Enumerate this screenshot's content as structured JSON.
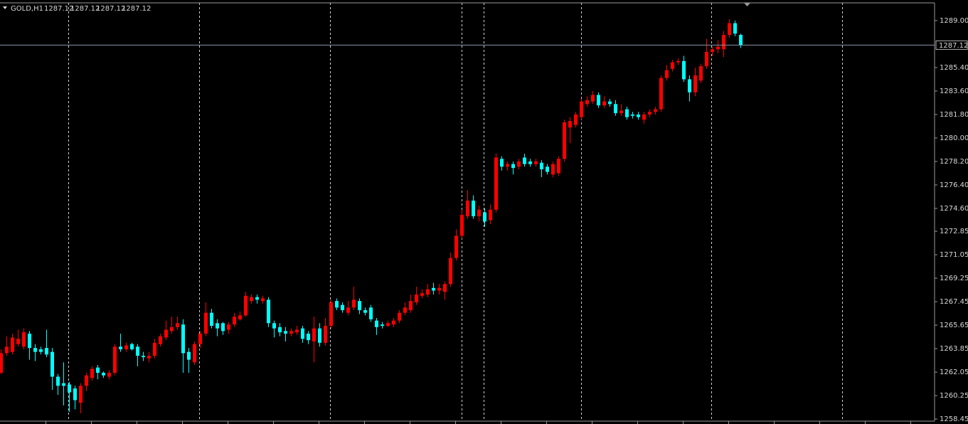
{
  "chart_data": {
    "type": "candlestick",
    "symbol": "GOLD,H1",
    "header_values": [
      1287.12,
      1287.12,
      1287.12,
      1287.12
    ],
    "up_color": "#ff0000",
    "down_color": "#00ffff",
    "grid": false,
    "current_price": 1287.12,
    "ylim": [
      1258.29,
      1290.36
    ],
    "yticks": [
      {
        "value": 1289.0,
        "label": "1289.00"
      },
      {
        "value": 1285.4,
        "label": "1285.40"
      },
      {
        "value": 1283.6,
        "label": "1283.60"
      },
      {
        "value": 1281.8,
        "label": "1281.80"
      },
      {
        "value": 1280.0,
        "label": "1280.00"
      },
      {
        "value": 1278.2,
        "label": "1278.20"
      },
      {
        "value": 1276.4,
        "label": "1276.40"
      },
      {
        "value": 1274.6,
        "label": "1274.60"
      },
      {
        "value": 1272.85,
        "label": "1272.85"
      },
      {
        "value": 1271.05,
        "label": "1271.05"
      },
      {
        "value": 1269.25,
        "label": "1269.25"
      },
      {
        "value": 1267.45,
        "label": "1267.45"
      },
      {
        "value": 1265.65,
        "label": "1265.65"
      },
      {
        "value": 1263.85,
        "label": "1263.85"
      },
      {
        "value": 1262.05,
        "label": "1262.05"
      },
      {
        "value": 1260.25,
        "label": "1260.25"
      },
      {
        "value": 1258.45,
        "label": "1258.45"
      }
    ],
    "open": [
      1262.0,
      1263.5,
      1263.6,
      1264.2,
      1264.0,
      1265.0,
      1263.9,
      1263.8,
      1263.9,
      1263.6,
      1261.7,
      1261.2,
      1261.1,
      1260.8,
      1259.7,
      1261.0,
      1261.6,
      1262.4,
      1262.0,
      1261.7,
      1262.0,
      1264.0,
      1263.8,
      1264.2,
      1264.0,
      1263.3,
      1263.1,
      1263.3,
      1264.2,
      1264.7,
      1265.2,
      1265.5,
      1265.7,
      1263.6,
      1262.8,
      1264.2,
      1265.0,
      1266.6,
      1265.8,
      1265.8,
      1265.3,
      1265.7,
      1266.1,
      1266.4,
      1267.5,
      1267.8,
      1267.5,
      1267.6,
      1265.8,
      1265.5,
      1265.2,
      1265.0,
      1265.1,
      1265.4,
      1265.0,
      1264.4,
      1265.4,
      1264.3,
      1265.6,
      1267.5,
      1267.2,
      1266.6,
      1267.0,
      1267.5,
      1266.8,
      1267.0,
      1266.0,
      1265.7,
      1265.6,
      1265.7,
      1266.0,
      1266.6,
      1266.8,
      1267.4,
      1267.9,
      1268.0,
      1268.5,
      1268.3,
      1268.2,
      1268.8,
      1270.8,
      1272.5,
      1274.0,
      1275.2,
      1274.0,
      1274.3,
      1273.7,
      1274.5,
      1278.4,
      1277.8,
      1278.0,
      1277.8,
      1278.5,
      1278.2,
      1278.0,
      1278.1,
      1277.8,
      1277.2,
      1277.3,
      1278.4,
      1280.8,
      1281.0,
      1281.6,
      1282.6,
      1282.8,
      1283.3,
      1282.5,
      1282.8,
      1282.6,
      1281.9,
      1282.2,
      1281.8,
      1281.8,
      1281.4,
      1281.8,
      1282.0,
      1282.2,
      1284.6,
      1285.3,
      1285.8,
      1285.9,
      1284.5,
      1283.5,
      1284.4,
      1285.5,
      1286.6,
      1286.8,
      1286.8,
      1287.9,
      1288.8,
      1287.9
    ],
    "high": [
      1263.8,
      1264.8,
      1265.0,
      1265.3,
      1265.4,
      1265.2,
      1264.2,
      1264.0,
      1265.3,
      1263.9,
      1261.9,
      1262.8,
      1261.3,
      1261.0,
      1261.2,
      1262.0,
      1262.5,
      1262.6,
      1262.1,
      1262.2,
      1264.2,
      1265.0,
      1264.3,
      1264.3,
      1264.2,
      1263.6,
      1263.6,
      1264.6,
      1265.0,
      1266.0,
      1266.3,
      1266.3,
      1266.1,
      1263.9,
      1264.4,
      1265.2,
      1267.4,
      1266.9,
      1266.1,
      1265.9,
      1265.9,
      1266.6,
      1266.7,
      1268.2,
      1268.0,
      1268.0,
      1267.9,
      1267.8,
      1266.0,
      1265.8,
      1265.5,
      1265.4,
      1265.6,
      1265.6,
      1265.2,
      1266.3,
      1265.8,
      1266.2,
      1267.6,
      1267.7,
      1267.4,
      1267.5,
      1268.6,
      1267.7,
      1267.0,
      1267.2,
      1266.2,
      1265.9,
      1266.0,
      1266.2,
      1266.8,
      1267.4,
      1268.0,
      1268.6,
      1268.4,
      1268.8,
      1268.9,
      1268.8,
      1269.0,
      1271.2,
      1273.0,
      1274.5,
      1276.0,
      1275.6,
      1274.8,
      1274.6,
      1274.9,
      1278.8,
      1278.6,
      1278.2,
      1278.2,
      1278.4,
      1278.8,
      1278.4,
      1278.4,
      1278.3,
      1278.0,
      1278.2,
      1278.6,
      1281.4,
      1281.6,
      1282.0,
      1283.0,
      1283.2,
      1283.6,
      1283.5,
      1283.2,
      1283.0,
      1282.9,
      1282.6,
      1282.4,
      1282.0,
      1282.0,
      1282.0,
      1282.2,
      1282.4,
      1284.8,
      1285.6,
      1286.0,
      1286.1,
      1286.3,
      1284.8,
      1285.4,
      1285.7,
      1287.6,
      1287.0,
      1287.5,
      1288.2,
      1289.1,
      1289.0,
      1288.0
    ],
    "low": [
      1261.9,
      1263.3,
      1263.4,
      1264.0,
      1263.8,
      1263.0,
      1262.9,
      1263.4,
      1263.2,
      1260.7,
      1260.3,
      1259.5,
      1259.0,
      1259.2,
      1258.9,
      1260.6,
      1261.4,
      1261.5,
      1261.6,
      1261.5,
      1261.8,
      1263.6,
      1263.6,
      1263.7,
      1262.5,
      1262.9,
      1262.8,
      1263.1,
      1264.0,
      1264.5,
      1265.0,
      1265.3,
      1262.0,
      1262.0,
      1262.6,
      1263.9,
      1264.8,
      1265.4,
      1264.8,
      1264.9,
      1265.0,
      1265.5,
      1266.0,
      1266.3,
      1267.3,
      1267.3,
      1267.3,
      1265.5,
      1264.7,
      1264.8,
      1264.4,
      1264.8,
      1264.9,
      1264.3,
      1264.2,
      1262.8,
      1264.0,
      1264.1,
      1265.4,
      1266.8,
      1266.6,
      1266.4,
      1266.8,
      1266.5,
      1266.4,
      1265.9,
      1264.9,
      1265.4,
      1265.5,
      1265.5,
      1265.8,
      1266.4,
      1266.6,
      1267.2,
      1267.7,
      1267.8,
      1268.0,
      1268.0,
      1267.6,
      1268.6,
      1270.6,
      1272.3,
      1273.8,
      1273.8,
      1273.6,
      1273.2,
      1273.4,
      1274.3,
      1277.5,
      1277.5,
      1277.2,
      1277.6,
      1277.8,
      1277.8,
      1277.8,
      1277.0,
      1277.2,
      1277.0,
      1277.1,
      1278.2,
      1279.6,
      1280.8,
      1281.4,
      1282.4,
      1282.6,
      1282.3,
      1282.3,
      1282.4,
      1281.7,
      1281.7,
      1281.4,
      1281.5,
      1281.4,
      1281.1,
      1281.6,
      1281.8,
      1282.0,
      1284.4,
      1285.1,
      1285.6,
      1284.3,
      1282.8,
      1283.2,
      1284.2,
      1285.3,
      1286.3,
      1286.5,
      1286.2,
      1287.7,
      1287.8,
      1286.9
    ],
    "close": [
      1263.5,
      1264.0,
      1264.7,
      1264.6,
      1265.1,
      1263.9,
      1263.6,
      1263.6,
      1263.4,
      1261.7,
      1261.0,
      1261.0,
      1260.5,
      1259.9,
      1261.0,
      1261.8,
      1262.3,
      1262.0,
      1261.8,
      1262.0,
      1264.0,
      1263.8,
      1264.1,
      1263.8,
      1263.3,
      1263.2,
      1263.3,
      1264.3,
      1264.8,
      1265.3,
      1265.5,
      1265.8,
      1263.5,
      1263.0,
      1264.2,
      1265.0,
      1266.6,
      1265.6,
      1265.4,
      1265.2,
      1265.7,
      1266.3,
      1266.4,
      1267.9,
      1267.8,
      1267.6,
      1267.7,
      1265.8,
      1265.4,
      1265.1,
      1265.0,
      1265.2,
      1265.3,
      1264.6,
      1264.5,
      1265.4,
      1264.3,
      1265.6,
      1267.4,
      1267.0,
      1266.8,
      1267.0,
      1267.6,
      1266.8,
      1266.6,
      1266.1,
      1265.5,
      1265.6,
      1265.8,
      1266.0,
      1266.6,
      1267.0,
      1267.5,
      1268.0,
      1268.1,
      1268.4,
      1268.3,
      1268.5,
      1268.8,
      1270.8,
      1272.5,
      1274.1,
      1275.2,
      1274.0,
      1274.5,
      1273.6,
      1274.5,
      1278.5,
      1277.8,
      1278.0,
      1277.7,
      1278.2,
      1278.0,
      1278.0,
      1278.2,
      1277.6,
      1277.4,
      1278.0,
      1278.4,
      1281.2,
      1281.3,
      1281.8,
      1282.8,
      1282.9,
      1283.3,
      1282.5,
      1282.8,
      1282.6,
      1281.9,
      1282.1,
      1281.6,
      1281.7,
      1281.6,
      1281.8,
      1282.0,
      1282.2,
      1284.6,
      1285.2,
      1285.8,
      1285.9,
      1284.5,
      1283.5,
      1284.8,
      1285.5,
      1286.6,
      1286.8,
      1287.0,
      1287.9,
      1288.8,
      1288.0,
      1287.12
    ]
  }
}
